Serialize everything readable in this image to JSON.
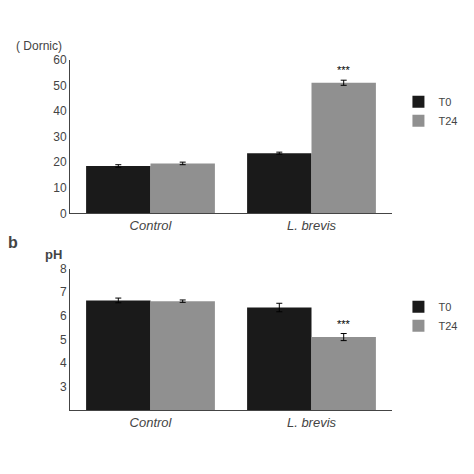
{
  "chart_data": [
    {
      "type": "bar",
      "ylabel": "( Dornic)",
      "categories": [
        "Control",
        "L. brevis"
      ],
      "series": [
        {
          "name": "T0",
          "color": "#1a1a1a",
          "values": [
            18.5,
            23.5
          ],
          "errors": [
            0.5,
            0.4
          ]
        },
        {
          "name": "T24",
          "color": "#909090",
          "values": [
            19.5,
            51.0
          ],
          "errors": [
            0.5,
            1.0
          ]
        }
      ],
      "annotations": [
        {
          "text": "***",
          "category": "L. brevis",
          "series": "T24"
        }
      ],
      "ylim": [
        0,
        60
      ],
      "yticks": [
        0,
        10,
        20,
        30,
        40,
        50,
        60
      ],
      "grid": false
    },
    {
      "type": "bar",
      "ylabel": "pH",
      "categories": [
        "Control",
        "L. brevis"
      ],
      "series": [
        {
          "name": "T0",
          "color": "#1a1a1a",
          "values": [
            6.65,
            6.35
          ],
          "errors": [
            0.1,
            0.18
          ]
        },
        {
          "name": "T24",
          "color": "#909090",
          "values": [
            6.62,
            5.1
          ],
          "errors": [
            0.05,
            0.15
          ]
        }
      ],
      "annotations": [
        {
          "text": "***",
          "category": "L. brevis",
          "series": "T24"
        },
        {
          "text": "b"
        }
      ],
      "ylim": [
        2,
        8
      ],
      "yticks": [
        3,
        4,
        5,
        6,
        7,
        8
      ],
      "grid": false
    }
  ]
}
